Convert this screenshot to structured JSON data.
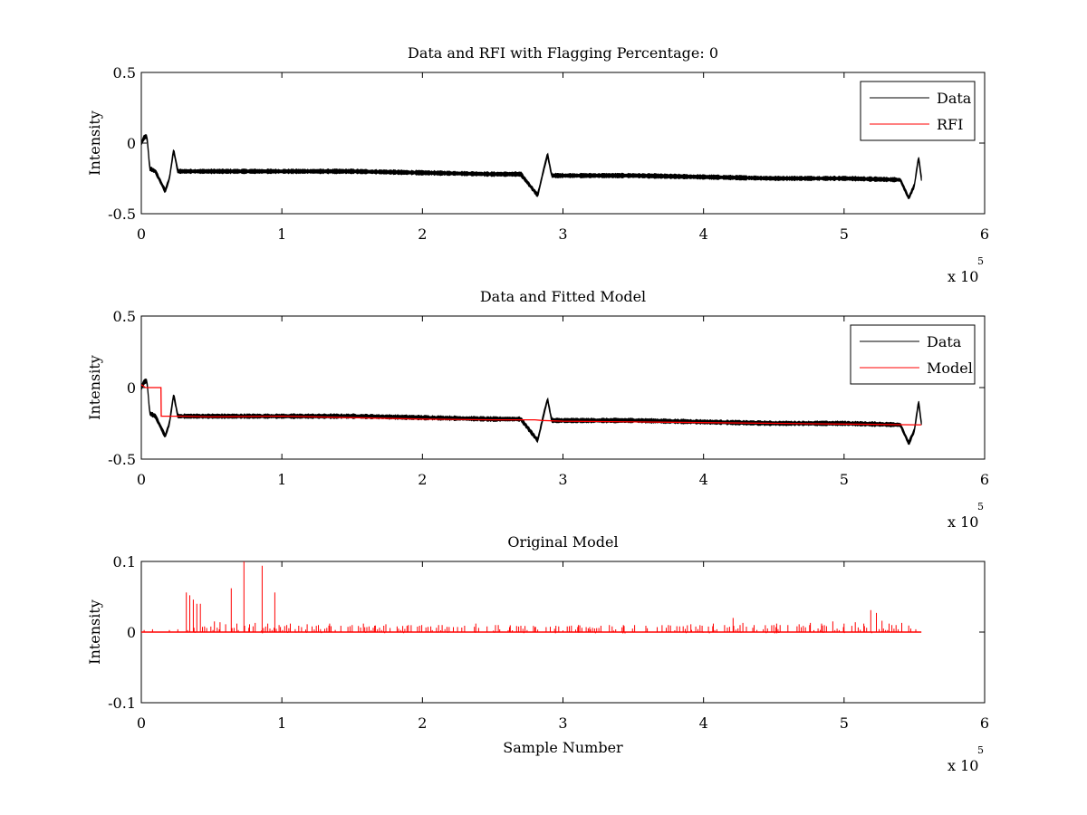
{
  "figure": {
    "background": "#ffffff"
  },
  "colors": {
    "data": "#000000",
    "rfi": "#ff0000",
    "model": "#ff0000",
    "axes": "#000000"
  },
  "chart_data": [
    {
      "type": "line",
      "title": "Data and RFI with Flagging Percentage: 0",
      "xlabel": "",
      "ylabel": "Intensity",
      "xlim": [
        0,
        600000
      ],
      "ylim": [
        -0.5,
        0.5
      ],
      "xticks": [
        0,
        100000,
        200000,
        300000,
        400000,
        500000,
        600000
      ],
      "xtick_labels": [
        "0",
        "1",
        "2",
        "3",
        "4",
        "5",
        "6"
      ],
      "yticks": [
        -0.5,
        0,
        0.5
      ],
      "ytick_labels": [
        "-0.5",
        "0",
        "0.5"
      ],
      "x_multiplier_label": "x 10",
      "x_multiplier_exponent": "5",
      "legend": {
        "position": "top-right",
        "entries": [
          "Data",
          "RFI"
        ]
      },
      "series": [
        {
          "name": "Data",
          "color": "#000000",
          "band": 0.028,
          "x": [
            0,
            2000,
            4000,
            6000,
            10000,
            17000,
            20000,
            23000,
            26000,
            50000,
            100000,
            150000,
            200000,
            250000,
            270000,
            282000,
            286000,
            289000,
            292000,
            300000,
            350000,
            400000,
            450000,
            500000,
            540000,
            546000,
            550000,
            553000,
            555000
          ],
          "y": [
            0.0,
            0.04,
            0.05,
            -0.18,
            -0.2,
            -0.34,
            -0.25,
            -0.05,
            -0.2,
            -0.2,
            -0.2,
            -0.2,
            -0.21,
            -0.22,
            -0.22,
            -0.37,
            -0.2,
            -0.08,
            -0.23,
            -0.23,
            -0.23,
            -0.24,
            -0.25,
            -0.25,
            -0.26,
            -0.39,
            -0.3,
            -0.1,
            -0.25
          ]
        },
        {
          "name": "RFI",
          "color": "#ff0000",
          "x": [],
          "y": []
        }
      ]
    },
    {
      "type": "line",
      "title": "Data and Fitted Model",
      "xlabel": "",
      "ylabel": "Intensity",
      "xlim": [
        0,
        600000
      ],
      "ylim": [
        -0.5,
        0.5
      ],
      "xticks": [
        0,
        100000,
        200000,
        300000,
        400000,
        500000,
        600000
      ],
      "xtick_labels": [
        "0",
        "1",
        "2",
        "3",
        "4",
        "5",
        "6"
      ],
      "yticks": [
        -0.5,
        0,
        0.5
      ],
      "ytick_labels": [
        "-0.5",
        "0",
        "0.5"
      ],
      "x_multiplier_label": "x 10",
      "x_multiplier_exponent": "5",
      "legend": {
        "position": "top-right",
        "entries": [
          "Data",
          "Model"
        ]
      },
      "series": [
        {
          "name": "Data",
          "color": "#000000",
          "band": 0.028,
          "x": [
            0,
            2000,
            4000,
            6000,
            10000,
            17000,
            20000,
            23000,
            26000,
            50000,
            100000,
            150000,
            200000,
            250000,
            270000,
            282000,
            286000,
            289000,
            292000,
            300000,
            350000,
            400000,
            450000,
            500000,
            540000,
            546000,
            550000,
            553000,
            555000
          ],
          "y": [
            0.0,
            0.04,
            0.05,
            -0.18,
            -0.2,
            -0.34,
            -0.25,
            -0.05,
            -0.2,
            -0.2,
            -0.2,
            -0.2,
            -0.21,
            -0.22,
            -0.22,
            -0.37,
            -0.2,
            -0.08,
            -0.23,
            -0.23,
            -0.23,
            -0.24,
            -0.25,
            -0.25,
            -0.26,
            -0.39,
            -0.3,
            -0.1,
            -0.25
          ]
        },
        {
          "name": "Model",
          "color": "#ff0000",
          "x": [
            0,
            1500,
            3000,
            14000,
            14200,
            25000,
            50000,
            100000,
            150000,
            200000,
            250000,
            280000,
            285000,
            300000,
            350000,
            400000,
            450000,
            500000,
            550000,
            555000
          ],
          "y": [
            0.02,
            0.01,
            0.0,
            0.0,
            -0.2,
            -0.2,
            -0.205,
            -0.2,
            -0.21,
            -0.22,
            -0.225,
            -0.225,
            -0.23,
            -0.235,
            -0.24,
            -0.245,
            -0.25,
            -0.255,
            -0.26,
            -0.26
          ]
        }
      ]
    },
    {
      "type": "line",
      "title": "Original Model",
      "xlabel": "Sample Number",
      "ylabel": "Intensity",
      "xlim": [
        0,
        600000
      ],
      "ylim": [
        -0.1,
        0.1
      ],
      "xticks": [
        0,
        100000,
        200000,
        300000,
        400000,
        500000,
        600000
      ],
      "xtick_labels": [
        "0",
        "1",
        "2",
        "3",
        "4",
        "5",
        "6"
      ],
      "yticks": [
        -0.1,
        0,
        0.1
      ],
      "ytick_labels": [
        "-0.1",
        "0",
        "0.1"
      ],
      "x_multiplier_label": "x 10",
      "x_multiplier_exponent": "5",
      "series": [
        {
          "name": "Model",
          "color": "#ff0000",
          "x_range": [
            0,
            555000
          ],
          "baseline": 0,
          "spikes": [
            [
              2000,
              0.003
            ],
            [
              8000,
              0.004
            ],
            [
              20000,
              0.003
            ],
            [
              26000,
              0.004
            ],
            [
              32000,
              0.056
            ],
            [
              34500,
              0.052
            ],
            [
              37000,
              0.046
            ],
            [
              39500,
              0.04
            ],
            [
              42000,
              0.04
            ],
            [
              45000,
              0.008
            ],
            [
              52000,
              0.015
            ],
            [
              56000,
              0.014
            ],
            [
              60000,
              0.011
            ],
            [
              64000,
              0.062
            ],
            [
              68000,
              0.012
            ],
            [
              73000,
              0.1
            ],
            [
              77000,
              0.011
            ],
            [
              81000,
              0.013
            ],
            [
              86000,
              0.094
            ],
            [
              90000,
              0.012
            ],
            [
              95000,
              0.056
            ],
            [
              98000,
              0.01
            ],
            [
              106000,
              0.012
            ],
            [
              112000,
              0.009
            ],
            [
              118000,
              0.011
            ],
            [
              126000,
              0.01
            ],
            [
              134000,
              0.012
            ],
            [
              142000,
              0.009
            ],
            [
              150000,
              0.01
            ],
            [
              158000,
              0.012
            ],
            [
              166000,
              0.009
            ],
            [
              174000,
              0.011
            ],
            [
              182000,
              0.008
            ],
            [
              190000,
              0.01
            ],
            [
              198000,
              0.009
            ],
            [
              206000,
              0.008
            ],
            [
              214000,
              0.01
            ],
            [
              222000,
              0.007
            ],
            [
              230000,
              0.009
            ],
            [
              238000,
              0.012
            ],
            [
              246000,
              0.008
            ],
            [
              254000,
              0.01
            ],
            [
              262000,
              0.007
            ],
            [
              270000,
              0.009
            ],
            [
              280000,
              0.007
            ],
            [
              295000,
              0.009
            ],
            [
              303000,
              0.008
            ],
            [
              311000,
              0.01
            ],
            [
              319000,
              0.007
            ],
            [
              327000,
              0.009
            ],
            [
              335000,
              0.008
            ],
            [
              343000,
              0.01
            ],
            [
              351000,
              0.008
            ],
            [
              359000,
              0.009
            ],
            [
              367000,
              0.007
            ],
            [
              375000,
              0.01
            ],
            [
              383000,
              0.008
            ],
            [
              391000,
              0.011
            ],
            [
              399000,
              0.009
            ],
            [
              407000,
              0.012
            ],
            [
              415000,
              0.01
            ],
            [
              421000,
              0.02
            ],
            [
              428000,
              0.013
            ],
            [
              436000,
              0.01
            ],
            [
              444000,
              0.009
            ],
            [
              452000,
              0.012
            ],
            [
              460000,
              0.01
            ],
            [
              468000,
              0.011
            ],
            [
              476000,
              0.013
            ],
            [
              484000,
              0.012
            ],
            [
              492000,
              0.015
            ],
            [
              500000,
              0.012
            ],
            [
              508000,
              0.014
            ],
            [
              514000,
              0.012
            ],
            [
              519000,
              0.031
            ],
            [
              523000,
              0.027
            ],
            [
              527000,
              0.016
            ],
            [
              532000,
              0.012
            ],
            [
              537000,
              0.01
            ],
            [
              541000,
              0.013
            ],
            [
              546000,
              0.009
            ],
            [
              551000,
              0.004
            ]
          ]
        }
      ]
    }
  ]
}
